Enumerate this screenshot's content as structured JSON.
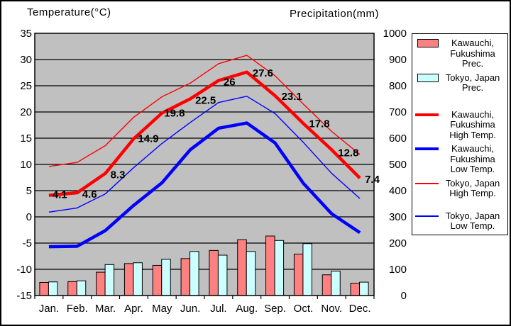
{
  "titles": {
    "left": "Temperature(°C)",
    "right": "Precipitation(mm)"
  },
  "chart_data": {
    "type": "combo (bar + line climate chart)",
    "categories": [
      "Jan.",
      "Feb.",
      "Mar.",
      "Apr.",
      "May",
      "Jun.",
      "Jul.",
      "Aug.",
      "Sep.",
      "Oct.",
      "Nov.",
      "Dec."
    ],
    "temp_axis": {
      "title": "Temperature(°C)",
      "side": "left",
      "min": -15,
      "max": 35,
      "ticks": [
        35,
        30,
        25,
        20,
        15,
        10,
        5,
        0,
        -5,
        -10,
        -15
      ]
    },
    "precip_axis": {
      "title": "Precipitation(mm)",
      "side": "right",
      "min": 0,
      "max": 1000,
      "ticks": [
        1000,
        900,
        800,
        700,
        600,
        500,
        400,
        300,
        200,
        100,
        0
      ]
    },
    "plot_bg": "#c0c0c0",
    "grid": "horizontal black lines every 5°C / 100mm",
    "series": [
      {
        "key": "kawauchi-prec",
        "name": "Kawauchi, Fukushima Prec.",
        "type": "bar",
        "axis": "precip",
        "color": "#ff8080",
        "values": [
          50,
          53,
          89,
          122,
          115,
          141,
          172,
          213,
          227,
          158,
          79,
          47
        ]
      },
      {
        "key": "tokyo-prec",
        "name": "Tokyo, Japan Prec.",
        "type": "bar",
        "axis": "precip",
        "color": "#ccffff",
        "values": [
          52,
          56,
          118,
          125,
          138,
          168,
          154,
          168,
          210,
          198,
          93,
          51
        ]
      },
      {
        "key": "tokyo-high",
        "name": "Tokyo, Japan High Temp.",
        "type": "line",
        "axis": "temp",
        "color": "#ff0000",
        "stroke_width": 1.4,
        "values": [
          9.6,
          10.4,
          13.6,
          19.0,
          22.9,
          25.5,
          29.2,
          30.8,
          26.9,
          21.5,
          16.3,
          11.9
        ]
      },
      {
        "key": "tokyo-low",
        "name": "Tokyo, Japan Low Temp.",
        "type": "line",
        "axis": "temp",
        "color": "#0000ff",
        "stroke_width": 1.4,
        "values": [
          0.9,
          1.7,
          4.4,
          9.4,
          14.0,
          18.0,
          21.8,
          23.0,
          19.7,
          14.2,
          8.3,
          3.5
        ]
      },
      {
        "key": "kawauchi-high",
        "name": "Kawauchi, Fukushima High Temp.",
        "type": "line",
        "axis": "temp",
        "color": "#ff0000",
        "stroke_width": 4.5,
        "values": [
          4.1,
          4.6,
          8.3,
          14.9,
          19.8,
          22.5,
          26,
          27.6,
          23.1,
          17.8,
          12.8,
          7.4
        ],
        "point_labels": [
          "4.1",
          "4.6",
          "8.3",
          "14.9",
          "19.8",
          "22.5",
          "26",
          "27.6",
          "23.1",
          "17.8",
          "12.8",
          "7.4"
        ]
      },
      {
        "key": "kawauchi-low",
        "name": "Kawauchi, Fukushima Low Temp.",
        "type": "line",
        "axis": "temp",
        "color": "#0000ff",
        "stroke_width": 4.5,
        "values": [
          -5.7,
          -5.6,
          -2.6,
          2.2,
          6.5,
          12.8,
          16.9,
          17.9,
          14.1,
          6.4,
          0.6,
          -3.0
        ]
      }
    ]
  },
  "legend": {
    "items": [
      {
        "key": "kawauchi-prec",
        "swatch": "bar",
        "color": "#ff8080",
        "lines": [
          "Kawauchi,",
          "Fukushima",
          "Prec."
        ]
      },
      {
        "key": "tokyo-prec",
        "swatch": "bar",
        "color": "#ccffff",
        "lines": [
          "Tokyo, Japan",
          "Prec."
        ]
      },
      {
        "key": "kawauchi-high",
        "swatch": "line-thick",
        "color": "#ff0000",
        "lines": [
          "Kawauchi,",
          "Fukushima",
          "High Temp."
        ]
      },
      {
        "key": "kawauchi-low",
        "swatch": "line-thick",
        "color": "#0000ff",
        "lines": [
          "Kawauchi,",
          "Fukushima",
          "Low Temp."
        ]
      },
      {
        "key": "tokyo-high",
        "swatch": "line-thin",
        "color": "#ff0000",
        "lines": [
          "Tokyo, Japan",
          "High Temp."
        ]
      },
      {
        "key": "tokyo-low",
        "swatch": "line-thin",
        "color": "#0000ff",
        "lines": [
          "Tokyo, Japan",
          "Low Temp."
        ]
      }
    ]
  }
}
